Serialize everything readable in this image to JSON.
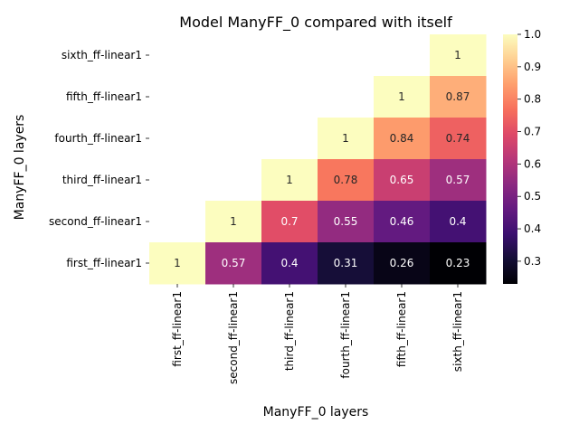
{
  "chart_data": {
    "type": "heatmap",
    "title": "Model ManyFF_0 compared with itself",
    "xlabel": "ManyFF_0 layers",
    "ylabel": "ManyFF_0 layers",
    "x_categories": [
      "first_ff-linear1",
      "second_ff-linear1",
      "third_ff-linear1",
      "fourth_ff-linear1",
      "fifth_ff-linear1",
      "sixth_ff-linear1"
    ],
    "y_categories": [
      "sixth_ff-linear1",
      "fifth_ff-linear1",
      "fourth_ff-linear1",
      "third_ff-linear1",
      "second_ff-linear1",
      "first_ff-linear1"
    ],
    "values": [
      [
        null,
        null,
        null,
        null,
        null,
        1
      ],
      [
        null,
        null,
        null,
        null,
        1,
        0.87
      ],
      [
        null,
        null,
        null,
        1,
        0.84,
        0.74
      ],
      [
        null,
        null,
        1,
        0.78,
        0.65,
        0.57
      ],
      [
        null,
        1,
        0.7,
        0.55,
        0.46,
        0.4
      ],
      [
        1,
        0.57,
        0.4,
        0.31,
        0.26,
        0.23
      ]
    ],
    "value_labels": [
      [
        null,
        null,
        null,
        null,
        null,
        "1"
      ],
      [
        null,
        null,
        null,
        null,
        "1",
        "0.87"
      ],
      [
        null,
        null,
        null,
        "1",
        "0.84",
        "0.74"
      ],
      [
        null,
        null,
        "1",
        "0.78",
        "0.65",
        "0.57"
      ],
      [
        null,
        "1",
        "0.7",
        "0.55",
        "0.46",
        "0.4"
      ],
      [
        "1",
        "0.57",
        "0.4",
        "0.31",
        "0.26",
        "0.23"
      ]
    ],
    "colormap": "magma",
    "vmin": 0.23,
    "vmax": 1.0,
    "colorbar_ticks": [
      0.3,
      0.4,
      0.5,
      0.6,
      0.7,
      0.8,
      0.9,
      1.0
    ],
    "colorbar_tick_labels": [
      "0.3",
      "0.4",
      "0.5",
      "0.6",
      "0.7",
      "0.8",
      "0.9",
      "1.0"
    ]
  }
}
